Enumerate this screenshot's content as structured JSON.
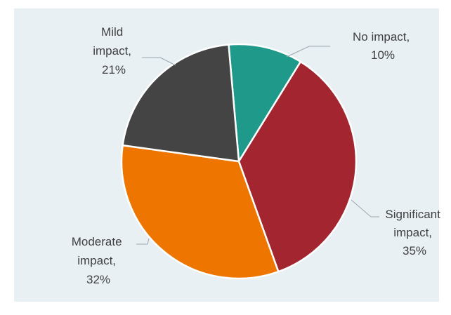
{
  "chart_data": {
    "type": "pie",
    "title": "",
    "slices": [
      {
        "label": "No impact",
        "value": 10,
        "color": "#1f9a8a",
        "label_lines": [
          "No impact,",
          "10%"
        ]
      },
      {
        "label": "Significant impact",
        "value": 35,
        "color": "#a2252f",
        "label_lines": [
          "Significant",
          "impact,",
          "35%"
        ]
      },
      {
        "label": "Moderate impact",
        "value": 32,
        "color": "#ee7600",
        "label_lines": [
          "Moderate",
          "impact,",
          "32%"
        ]
      },
      {
        "label": "Mild impact",
        "value": 21,
        "color": "#444444",
        "label_lines": [
          "Mild",
          "impact,",
          "21%"
        ]
      }
    ],
    "legend": "none",
    "data_labels": "outside with leader lines"
  }
}
